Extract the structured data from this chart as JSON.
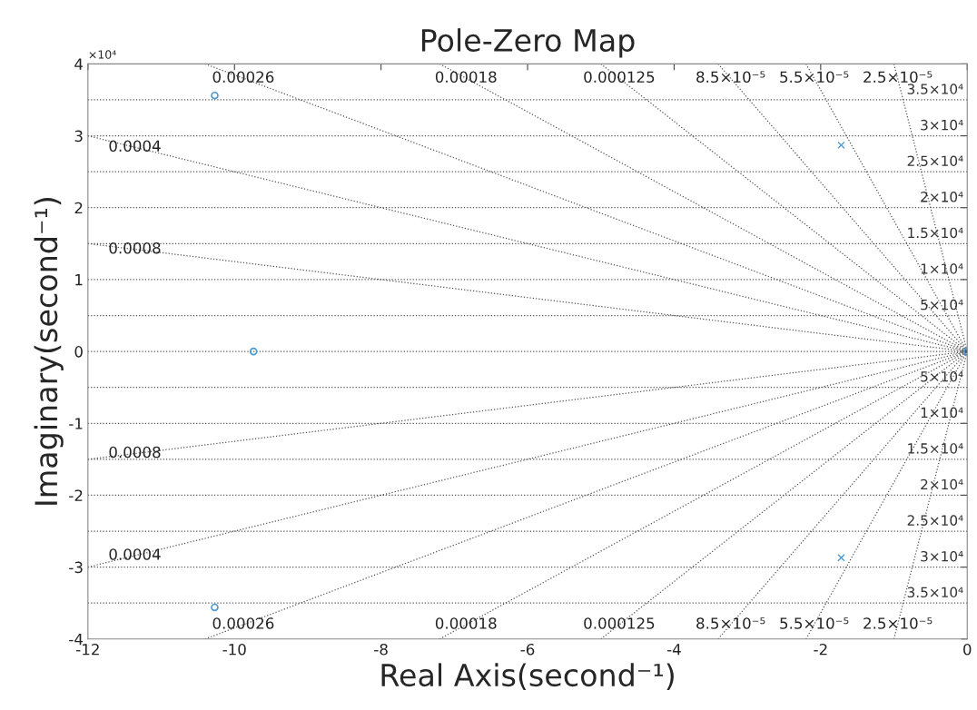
{
  "chart_data": {
    "type": "scatter",
    "title": "Pole-Zero Map",
    "xlabel": "Real Axis(second⁻¹)",
    "ylabel": "Imaginary(second⁻¹)",
    "xlim": [
      -12,
      0
    ],
    "xticks": [
      -12,
      -10,
      -8,
      -6,
      -4,
      -2,
      0
    ],
    "ylim": [
      -4,
      4
    ],
    "yticks": [
      -4,
      -3,
      -2,
      -1,
      0,
      1,
      2,
      3,
      4
    ],
    "grid": false,
    "series": [
      {
        "type": "line",
        "color": "#555555",
        "line_style": "dotted",
        "marker": "none",
        "x": [
          -10.4,
          0
        ],
        "values": [
          4,
          0
        ]
      },
      {
        "type": "line",
        "color": "#555555",
        "line_style": "dotted",
        "marker": "none",
        "x": [
          -7.2,
          0
        ],
        "values": [
          4,
          0
        ]
      },
      {
        "type": "line",
        "color": "#555555",
        "line_style": "dotted",
        "marker": "none",
        "x": [
          -5.0,
          0
        ],
        "values": [
          4,
          0
        ]
      },
      {
        "type": "line",
        "color": "#555555",
        "line_style": "dotted",
        "marker": "none",
        "x": [
          -3.4,
          0
        ],
        "values": [
          4,
          0
        ]
      },
      {
        "type": "line",
        "color": "#555555",
        "line_style": "dotted",
        "marker": "none",
        "x": [
          -2.2,
          0
        ],
        "values": [
          4,
          0
        ]
      },
      {
        "type": "line",
        "color": "#555555",
        "line_style": "dotted",
        "marker": "none",
        "x": [
          -1.0,
          0
        ],
        "values": [
          4,
          0
        ]
      },
      {
        "type": "line",
        "color": "#555555",
        "line_style": "dotted",
        "marker": "none",
        "x": [
          -12,
          0
        ],
        "values": [
          3.0,
          0
        ]
      },
      {
        "type": "line",
        "color": "#555555",
        "line_style": "dotted",
        "marker": "none",
        "x": [
          -12,
          0
        ],
        "values": [
          1.5,
          0
        ]
      },
      {
        "type": "line",
        "color": "#555555",
        "line_style": "dotted",
        "marker": "none",
        "x": [
          -10.4,
          0
        ],
        "values": [
          -4,
          0
        ]
      },
      {
        "type": "line",
        "color": "#555555",
        "line_style": "dotted",
        "marker": "none",
        "x": [
          -7.2,
          0
        ],
        "values": [
          -4,
          0
        ]
      },
      {
        "type": "line",
        "color": "#555555",
        "line_style": "dotted",
        "marker": "none",
        "x": [
          -5.0,
          0
        ],
        "values": [
          -4,
          0
        ]
      },
      {
        "type": "line",
        "color": "#555555",
        "line_style": "dotted",
        "marker": "none",
        "x": [
          -3.4,
          0
        ],
        "values": [
          -4,
          0
        ]
      },
      {
        "type": "line",
        "color": "#555555",
        "line_style": "dotted",
        "marker": "none",
        "x": [
          -2.2,
          0
        ],
        "values": [
          -4,
          0
        ]
      },
      {
        "type": "line",
        "color": "#555555",
        "line_style": "dotted",
        "marker": "none",
        "x": [
          -1.0,
          0
        ],
        "values": [
          -4,
          0
        ]
      },
      {
        "type": "line",
        "color": "#555555",
        "line_style": "dotted",
        "marker": "none",
        "x": [
          -12,
          0
        ],
        "values": [
          -3.0,
          0
        ]
      },
      {
        "type": "line",
        "color": "#555555",
        "line_style": "dotted",
        "marker": "none",
        "x": [
          -12,
          0
        ],
        "values": [
          -1.5,
          0
        ]
      },
      {
        "color": "#4a9bd4",
        "marker": "circle",
        "x": [
          -10.27,
          -9.74,
          -10.27,
          0
        ],
        "values": [
          3.56,
          0,
          -3.56,
          0
        ]
      },
      {
        "color": "#4a9bd4",
        "marker": "cross",
        "x": [
          -1.72,
          -1.72
        ],
        "values": [
          2.87,
          -2.87
        ]
      }
    ],
    "ref_lines": [
      {
        "axis": "y",
        "value": 3.5,
        "label": "3.5×10⁴"
      },
      {
        "axis": "y",
        "value": 3,
        "label": "3×10⁴"
      },
      {
        "axis": "y",
        "value": 2.5,
        "label": "2.5×10⁴"
      },
      {
        "axis": "y",
        "value": 2,
        "label": "2×10⁴"
      },
      {
        "axis": "y",
        "value": 1.5,
        "label": "1.5×10⁴"
      },
      {
        "axis": "y",
        "value": 1,
        "label": "1×10⁴"
      },
      {
        "axis": "y",
        "value": 0.5,
        "label": "5×10⁴"
      },
      {
        "axis": "y",
        "value": 0
      },
      {
        "axis": "y",
        "value": -0.5,
        "label": "5×10⁴"
      },
      {
        "axis": "y",
        "value": -1,
        "label": "1×10⁴"
      },
      {
        "axis": "y",
        "value": -1.5,
        "label": "1.5×10⁴"
      },
      {
        "axis": "y",
        "value": -2,
        "label": "2×10⁴"
      },
      {
        "axis": "y",
        "value": -2.5,
        "label": "2.5×10⁴"
      },
      {
        "axis": "y",
        "value": -3,
        "label": "3×10⁴"
      },
      {
        "axis": "y",
        "value": -3.5,
        "label": "3.5×10⁴"
      }
    ],
    "annotations": [
      "×10⁴",
      {
        "text": "0.00026",
        "x": -9.88,
        "y": 3.8
      },
      {
        "text": "0.00018",
        "x": -6.84,
        "y": 3.8
      },
      {
        "text": "0.000125",
        "x": -4.75,
        "y": 3.8
      },
      {
        "text": "8.5×10⁻⁵",
        "x": -3.23,
        "y": 3.8
      },
      {
        "text": "5.5×10⁻⁵",
        "x": -2.09,
        "y": 3.8
      },
      {
        "text": "2.5×10⁻⁵",
        "x": -0.95,
        "y": 3.8
      },
      {
        "text": "0.0004",
        "x": -11.36,
        "y": 2.84
      },
      {
        "text": "0.0008",
        "x": -11.36,
        "y": 1.42
      },
      {
        "text": "0.0008",
        "x": -11.36,
        "y": -1.42
      },
      {
        "text": "0.0004",
        "x": -11.36,
        "y": -2.84
      },
      {
        "text": "0.00026",
        "x": -9.88,
        "y": -3.8
      },
      {
        "text": "0.00018",
        "x": -6.84,
        "y": -3.8
      },
      {
        "text": "0.000125",
        "x": -4.75,
        "y": -3.8
      },
      {
        "text": "8.5×10⁻⁵",
        "x": -3.23,
        "y": -3.8
      },
      {
        "text": "5.5×10⁻⁵",
        "x": -2.09,
        "y": -3.8
      },
      {
        "text": "2.5×10⁻⁵",
        "x": -0.95,
        "y": -3.8
      }
    ]
  }
}
